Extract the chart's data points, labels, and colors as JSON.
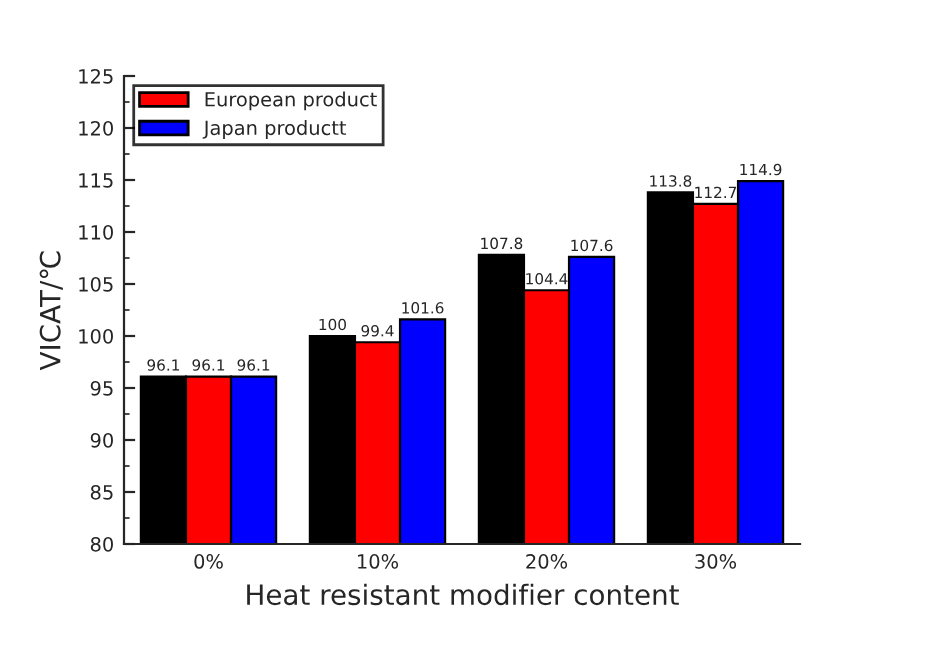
{
  "chart_data": {
    "type": "bar",
    "xlabel": "Heat resistant modifier content",
    "ylabel": "VICAT/℃",
    "categories": [
      "0%",
      "10%",
      "20%",
      "30%"
    ],
    "series": [
      {
        "color": "#000000",
        "values": [
          96.1,
          100,
          107.8,
          113.8
        ]
      },
      {
        "name": "European product",
        "color": "#ff0000",
        "values": [
          96.1,
          99.4,
          104.4,
          112.7
        ]
      },
      {
        "name": "Japan productt",
        "color": "#0000ff",
        "values": [
          96.1,
          101.6,
          107.6,
          114.9
        ]
      }
    ],
    "ylim": [
      80,
      125
    ],
    "yticks": [
      80,
      85,
      90,
      95,
      100,
      105,
      110,
      115,
      120,
      125
    ],
    "data_labels": true,
    "grid": false,
    "legend": "top left"
  }
}
